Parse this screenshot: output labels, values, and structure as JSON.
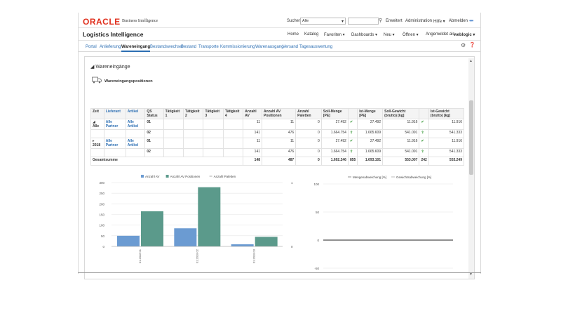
{
  "header": {
    "logo": "ORACLE",
    "logo_sub": "Business Intelligence",
    "search_label": "Suchen",
    "search_scope": "Alle",
    "links": [
      "Erweitert",
      "Administration",
      "Hilfe ▾",
      "Abmelden"
    ]
  },
  "appbar": {
    "title": "Logistics Intelligence",
    "nav": [
      "Home",
      "Katalog",
      "Favoriten ▾",
      "Dashboards ▾",
      "Neu ▾",
      "Öffnen ▾",
      "Angemeldet als",
      "weblogic ▾"
    ]
  },
  "tabs": [
    "Portal",
    "Anlieferung",
    "Wareneingang",
    "Bestandswechsel",
    "Bestand",
    "Transporte",
    "Kommissionierung",
    "Warenausgang",
    "Versand",
    "Tagesauswertung"
  ],
  "active_tab": "Wareneingang",
  "section": {
    "title": "Wareneingänge",
    "subtitle": "Wareneingangspositionen"
  },
  "table": {
    "headers": [
      "Zeit",
      "Lieferant",
      "Artikel",
      "QS Status",
      "Tätigkeit 1",
      "Tätigkeit 2",
      "Tätigkeit 3",
      "Tätigkeit 4",
      "Anzahl AV",
      "Anzahl AV Positionen",
      "Anzahl Paletten",
      "Soll-Menge [PE]",
      "",
      "Ist-Menge [PE]",
      "Soll-Gewicht (brutto) [kg]",
      "",
      "Ist-Gewicht (brutto) [kg]"
    ],
    "rows": [
      {
        "zeit": "Alle",
        "lief": "Alle Partner",
        "art": "Alle Artikel",
        "qs": "01",
        "av": "11",
        "avpos": "11",
        "pal": "0",
        "soll": "27.492",
        "ist": "27.492",
        "sollg": "11.916",
        "istg": "11.916"
      },
      {
        "zeit": "",
        "lief": "",
        "art": "",
        "qs": "02",
        "av": "141",
        "avpos": "476",
        "pal": "0",
        "soll": "1.664.754",
        "ist": "1.665.609",
        "sollg": "541.091",
        "istg": "541.333"
      },
      {
        "zeit": "2018",
        "lief": "Alle Partner",
        "art": "Alle Artikel",
        "qs": "01",
        "av": "11",
        "avpos": "11",
        "pal": "0",
        "soll": "27.492",
        "ist": "27.492",
        "sollg": "11.916",
        "istg": "11.916"
      },
      {
        "zeit": "",
        "lief": "",
        "art": "",
        "qs": "02",
        "av": "141",
        "avpos": "476",
        "pal": "0",
        "soll": "1.664.754",
        "ist": "1.665.609",
        "sollg": "541.091",
        "istg": "541.333"
      }
    ],
    "total": {
      "label": "Gesamtsumme",
      "av": "148",
      "avpos": "487",
      "pal": "0",
      "soll": "1.692.246",
      "sollx": "855",
      "ist": "1.693.101",
      "sollg": "553.007",
      "sollgx": "242",
      "istg": "553.249"
    }
  },
  "chart_data": [
    {
      "type": "bar",
      "categories": [
        "01.2018 01",
        "01.2018 02",
        "01.2018 03"
      ],
      "series": [
        {
          "name": "Anzahl AV",
          "values": [
            50,
            85,
            10
          ],
          "color": "#6b9bd2"
        },
        {
          "name": "Anzahl AV Positionen",
          "values": [
            165,
            278,
            45
          ],
          "color": "#5b9a8b"
        },
        {
          "name": "Anzahl Paletten",
          "values": [
            0,
            0,
            0
          ],
          "color": "#999999"
        }
      ],
      "ylim": [
        0,
        300
      ],
      "yticks": [
        "0",
        "50",
        "100",
        "150",
        "200",
        "250",
        "300"
      ],
      "y2ticks": [
        "0",
        "1"
      ],
      "legend": "top"
    },
    {
      "type": "line",
      "series": [
        {
          "name": "Mengenabweichung [%]",
          "color": "#777777",
          "values": [
            0,
            0,
            0
          ]
        },
        {
          "name": "Gewichtsabweichung [%]",
          "color": "#aaaaaa",
          "values": [
            0,
            0,
            0
          ]
        }
      ],
      "ylim": [
        -50,
        100
      ],
      "yticks": [
        "100",
        "50",
        "0",
        "-50"
      ],
      "legend": "top"
    }
  ]
}
